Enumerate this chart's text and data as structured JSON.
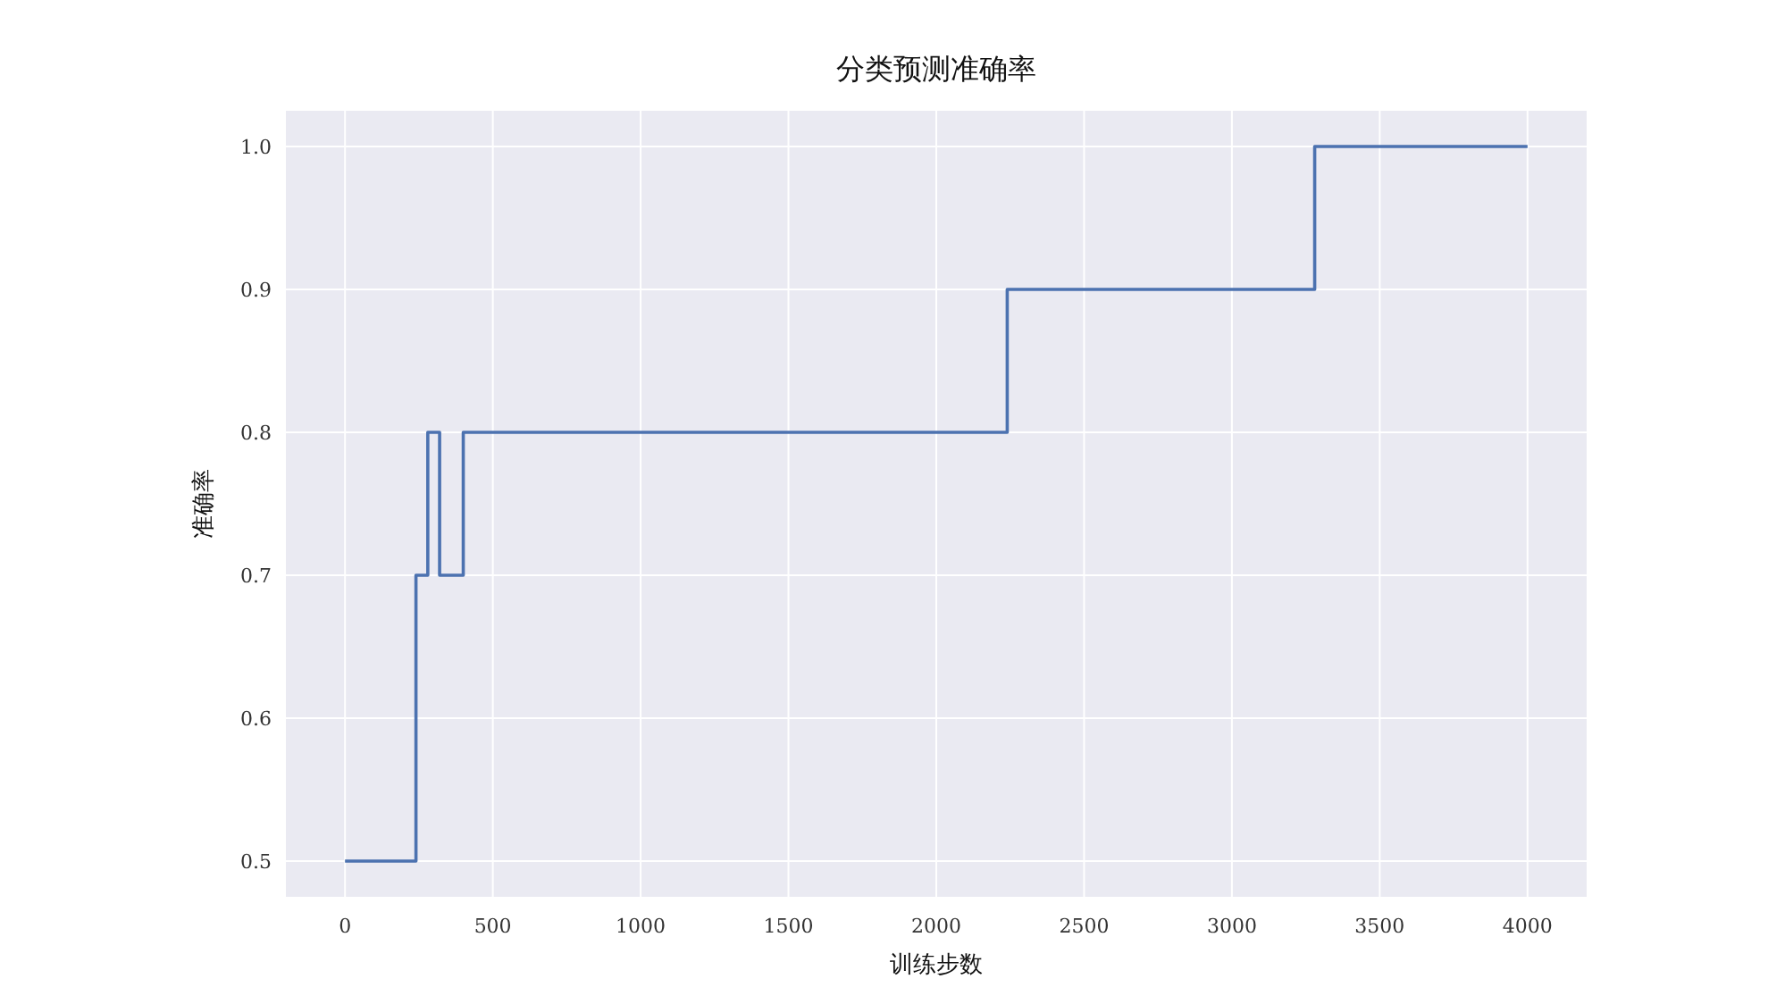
{
  "chart_data": {
    "type": "step",
    "title": "分类预测准确率",
    "xlabel": "训练步数",
    "ylabel": "准确率",
    "x": [
      0,
      240,
      280,
      320,
      400,
      2240,
      3280,
      4000
    ],
    "series": [
      {
        "color": "#4c72b0",
        "values": [
          0.5,
          0.7,
          0.8,
          0.7,
          0.8,
          0.9,
          1.0,
          1.0
        ]
      }
    ],
    "xlim": [
      -200,
      4200
    ],
    "xticks": [
      0,
      500,
      1000,
      1500,
      2000,
      2500,
      3000,
      3500,
      4000
    ],
    "ylim": [
      0.475,
      1.025
    ],
    "yticks": [
      {
        "value": 0.5,
        "label": "0.5"
      },
      {
        "value": 0.6,
        "label": "0.6"
      },
      {
        "value": 0.7,
        "label": "0.7"
      },
      {
        "value": 0.8,
        "label": "0.8"
      },
      {
        "value": 0.9,
        "label": "0.9"
      },
      {
        "value": 1.0,
        "label": "1.0"
      }
    ],
    "grid": true
  }
}
